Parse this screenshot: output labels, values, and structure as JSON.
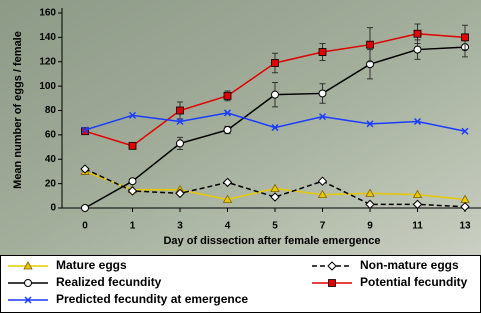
{
  "chart_data": {
    "type": "line",
    "y_label": "Mean number of eggs / female",
    "x_label": "Day of dissection after female emergence",
    "categories": [
      "0",
      "1",
      "3",
      "4",
      "5",
      "7",
      "9",
      "11",
      "13"
    ],
    "ylim": [
      0,
      160
    ],
    "yticks": [
      0,
      20,
      40,
      60,
      80,
      100,
      120,
      140,
      160
    ],
    "series": [
      {
        "name": "Mature eggs",
        "color": "#e8c800",
        "marker": "triangle",
        "dash": false,
        "values": [
          30,
          15,
          15,
          7,
          16,
          11,
          12,
          11,
          7
        ]
      },
      {
        "name": "Non-mature eggs",
        "color": "#000000",
        "marker": "diamond",
        "dash": true,
        "values": [
          32,
          14,
          12,
          21,
          9,
          22,
          3,
          3,
          1
        ]
      },
      {
        "name": "Realized fecundity",
        "color": "#000000",
        "marker": "circle",
        "dash": false,
        "values": [
          0,
          22,
          53,
          64,
          93,
          94,
          118,
          130,
          132
        ],
        "errors": [
          0,
          0,
          5,
          3,
          10,
          8,
          12,
          8,
          8
        ]
      },
      {
        "name": "Potential fecundity",
        "color": "#e00000",
        "marker": "square",
        "dash": false,
        "values": [
          63,
          51,
          80,
          92,
          119,
          128,
          134,
          143,
          140
        ],
        "errors": [
          0,
          0,
          7,
          4,
          8,
          7,
          14,
          8,
          10
        ]
      },
      {
        "name": "Predicted fecundity at emergence",
        "color": "#1a3cff",
        "marker": "cross",
        "dash": false,
        "values": [
          64,
          76,
          71,
          78,
          66,
          75,
          69,
          71,
          63
        ]
      }
    ]
  }
}
